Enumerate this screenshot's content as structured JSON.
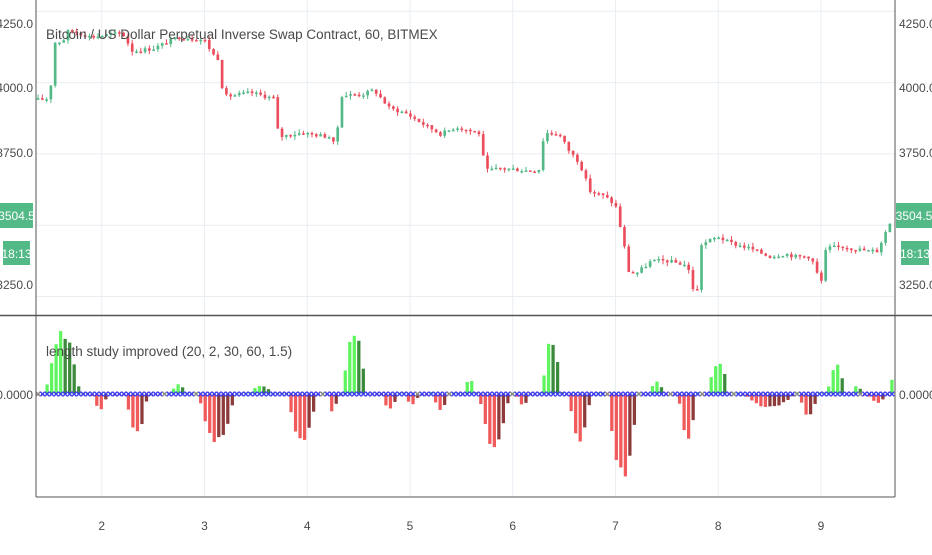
{
  "title": "Bitcoin / US Dollar Perpetual Inverse Swap Contract, 60, BITMEX",
  "colors": {
    "up": "#53b987",
    "down": "#eb4d5c",
    "grid": "#e9eef3",
    "text": "#4a4a4a",
    "axis_line": "#555555",
    "tag_bg": "#53b987",
    "tag_text": "#ffffff",
    "hist_bright_green": "#5ef55e",
    "hist_dark_green": "#3c8a3c",
    "hist_bright_red": "#f05a5a",
    "hist_dark_red": "#8c3a3a",
    "zero_marker": "#3b3bf0"
  },
  "price_pane": {
    "last_price_label": "3504.5",
    "countdown_label": "18:13",
    "y_ticks": [
      "4250.0",
      "4000.0",
      "3750.0",
      "3250.0"
    ]
  },
  "indicator_pane": {
    "legend": "length study improved (20, 2, 30, 60, 1.5)",
    "y_tick": "0.0000"
  },
  "x_axis": {
    "ticks": [
      "2",
      "3",
      "4",
      "5",
      "6",
      "7",
      "8",
      "9"
    ]
  },
  "chart_data": [
    {
      "type": "candlestick",
      "title": "Bitcoin / US Dollar Perpetual Inverse Swap Contract, 60, BITMEX",
      "xlim": [
        1.36,
        9.72
      ],
      "ylim": [
        3185,
        4290
      ],
      "y_ticks": [
        3250,
        3500,
        3750,
        4000,
        4250
      ],
      "y_tick_labels": [
        "3250.0",
        "3750.0",
        "4000.0",
        "4250.0"
      ],
      "x_ticks": [
        2,
        3,
        4,
        5,
        6,
        7,
        8,
        9
      ],
      "grid": true,
      "last_price": 3504.5,
      "path_anchors": [
        {
          "x": 1.38,
          "y": 3940
        },
        {
          "x": 1.5,
          "y": 3945
        },
        {
          "x": 1.52,
          "y": 4140
        },
        {
          "x": 1.62,
          "y": 4145
        },
        {
          "x": 1.68,
          "y": 4185
        },
        {
          "x": 1.9,
          "y": 4160
        },
        {
          "x": 2.2,
          "y": 4175
        },
        {
          "x": 2.3,
          "y": 4110
        },
        {
          "x": 2.5,
          "y": 4120
        },
        {
          "x": 2.75,
          "y": 4160
        },
        {
          "x": 3.0,
          "y": 4150
        },
        {
          "x": 3.08,
          "y": 4100
        },
        {
          "x": 3.15,
          "y": 4080
        },
        {
          "x": 3.18,
          "y": 3950
        },
        {
          "x": 3.45,
          "y": 3965
        },
        {
          "x": 3.68,
          "y": 3945
        },
        {
          "x": 3.72,
          "y": 3810
        },
        {
          "x": 3.95,
          "y": 3825
        },
        {
          "x": 4.02,
          "y": 3820
        },
        {
          "x": 4.22,
          "y": 3810
        },
        {
          "x": 4.28,
          "y": 3770
        },
        {
          "x": 4.32,
          "y": 3955
        },
        {
          "x": 4.55,
          "y": 3960
        },
        {
          "x": 4.65,
          "y": 3975
        },
        {
          "x": 4.8,
          "y": 3910
        },
        {
          "x": 4.95,
          "y": 3895
        },
        {
          "x": 5.15,
          "y": 3850
        },
        {
          "x": 5.3,
          "y": 3820
        },
        {
          "x": 5.45,
          "y": 3845
        },
        {
          "x": 5.6,
          "y": 3830
        },
        {
          "x": 5.7,
          "y": 3820
        },
        {
          "x": 5.72,
          "y": 3690
        },
        {
          "x": 5.9,
          "y": 3700
        },
        {
          "x": 6.2,
          "y": 3690
        },
        {
          "x": 6.28,
          "y": 3700
        },
        {
          "x": 6.3,
          "y": 3825
        },
        {
          "x": 6.45,
          "y": 3820
        },
        {
          "x": 6.55,
          "y": 3760
        },
        {
          "x": 6.65,
          "y": 3720
        },
        {
          "x": 6.75,
          "y": 3620
        },
        {
          "x": 6.9,
          "y": 3600
        },
        {
          "x": 7.0,
          "y": 3570
        },
        {
          "x": 7.08,
          "y": 3440
        },
        {
          "x": 7.12,
          "y": 3340
        },
        {
          "x": 7.2,
          "y": 3330
        },
        {
          "x": 7.35,
          "y": 3375
        },
        {
          "x": 7.5,
          "y": 3375
        },
        {
          "x": 7.7,
          "y": 3360
        },
        {
          "x": 7.75,
          "y": 3280
        },
        {
          "x": 7.8,
          "y": 3270
        },
        {
          "x": 7.82,
          "y": 3430
        },
        {
          "x": 8.0,
          "y": 3460
        },
        {
          "x": 8.1,
          "y": 3440
        },
        {
          "x": 8.3,
          "y": 3420
        },
        {
          "x": 8.5,
          "y": 3390
        },
        {
          "x": 8.65,
          "y": 3400
        },
        {
          "x": 8.75,
          "y": 3390
        },
        {
          "x": 8.9,
          "y": 3390
        },
        {
          "x": 9.0,
          "y": 3295
        },
        {
          "x": 9.05,
          "y": 3420
        },
        {
          "x": 9.2,
          "y": 3425
        },
        {
          "x": 9.45,
          "y": 3410
        },
        {
          "x": 9.55,
          "y": 3410
        },
        {
          "x": 9.62,
          "y": 3470
        },
        {
          "x": 9.67,
          "y": 3505
        }
      ]
    },
    {
      "type": "bar",
      "title": "",
      "legend": "length study improved (20, 2, 30, 60, 1.5)",
      "xlim": [
        1.36,
        9.72
      ],
      "ylim": [
        -1.15,
        0.75
      ],
      "y_tick_labels": [
        "0.0000"
      ],
      "grid": true,
      "lobes": [
        {
          "center": 1.62,
          "width": 0.34,
          "height": 0.62
        },
        {
          "center": 1.98,
          "width": 0.16,
          "height": -0.18
        },
        {
          "center": 2.34,
          "width": 0.22,
          "height": -0.46
        },
        {
          "center": 2.75,
          "width": 0.16,
          "height": 0.1
        },
        {
          "center": 3.12,
          "width": 0.36,
          "height": -0.56
        },
        {
          "center": 3.55,
          "width": 0.24,
          "height": 0.09
        },
        {
          "center": 3.95,
          "width": 0.3,
          "height": -0.55
        },
        {
          "center": 4.25,
          "width": 0.1,
          "height": -0.22
        },
        {
          "center": 4.46,
          "width": 0.24,
          "height": 0.62
        },
        {
          "center": 4.8,
          "width": 0.16,
          "height": -0.18
        },
        {
          "center": 5.02,
          "width": 0.14,
          "height": -0.12
        },
        {
          "center": 5.3,
          "width": 0.16,
          "height": -0.18
        },
        {
          "center": 5.58,
          "width": 0.14,
          "height": 0.15
        },
        {
          "center": 5.82,
          "width": 0.3,
          "height": -0.62
        },
        {
          "center": 6.1,
          "width": 0.14,
          "height": -0.14
        },
        {
          "center": 6.38,
          "width": 0.2,
          "height": 0.55
        },
        {
          "center": 6.65,
          "width": 0.22,
          "height": -0.56
        },
        {
          "center": 7.07,
          "width": 0.3,
          "height": -0.98
        },
        {
          "center": 7.4,
          "width": 0.14,
          "height": 0.14
        },
        {
          "center": 7.7,
          "width": 0.18,
          "height": -0.52
        },
        {
          "center": 8.0,
          "width": 0.22,
          "height": 0.33
        },
        {
          "center": 8.5,
          "width": 0.5,
          "height": -0.16
        },
        {
          "center": 8.88,
          "width": 0.18,
          "height": -0.28
        },
        {
          "center": 9.15,
          "width": 0.18,
          "height": 0.3
        },
        {
          "center": 9.35,
          "width": 0.12,
          "height": 0.08
        },
        {
          "center": 9.55,
          "width": 0.2,
          "height": -0.1
        },
        {
          "center": 9.68,
          "width": 0.04,
          "height": 0.2
        }
      ]
    }
  ]
}
